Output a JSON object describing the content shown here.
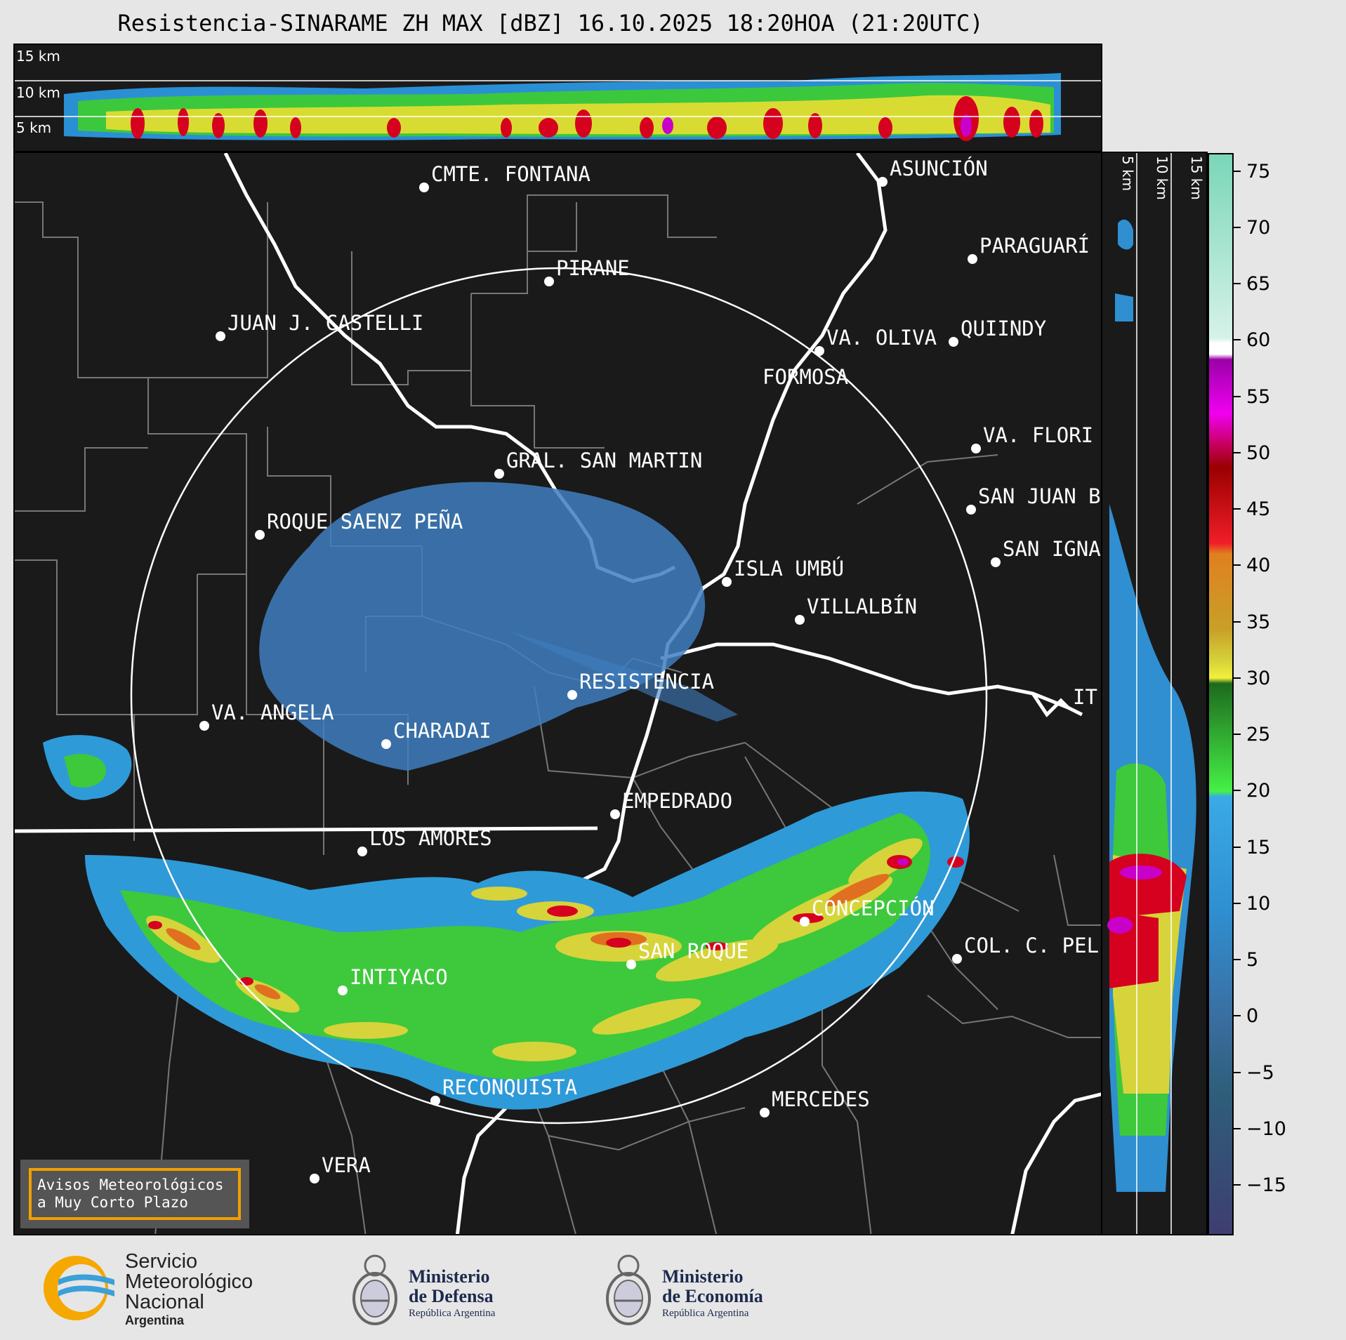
{
  "title": "Resistencia-SINARAME ZH MAX [dBZ] 16.10.2025 18:20HOA (21:20UTC)",
  "top_profile": {
    "labels": [
      "15 km",
      "10 km",
      "5 km"
    ]
  },
  "side_profile": {
    "labels": [
      "5 km",
      "10 km",
      "15 km"
    ]
  },
  "colorbar": {
    "ticks": [
      "75",
      "70",
      "65",
      "60",
      "55",
      "50",
      "45",
      "40",
      "35",
      "30",
      "25",
      "20",
      "15",
      "10",
      "5",
      "0",
      "−5",
      "−10",
      "−15"
    ]
  },
  "cities": [
    {
      "name": "CMTE. FONTANA"
    },
    {
      "name": "ASUNCIÓN"
    },
    {
      "name": "PARAGUARÍ"
    },
    {
      "name": "PIRANE"
    },
    {
      "name": "JUAN J. CASTELLI"
    },
    {
      "name": "VA. OLIVA"
    },
    {
      "name": "QUIINDY"
    },
    {
      "name": "FORMOSA"
    },
    {
      "name": "VA. FLORI"
    },
    {
      "name": "GRAL. SAN MARTIN"
    },
    {
      "name": "SAN JUAN B"
    },
    {
      "name": "ROQUE SAENZ PEÑA"
    },
    {
      "name": "SAN IGNA"
    },
    {
      "name": "ISLA UMBÚ"
    },
    {
      "name": "VILLALBÍN"
    },
    {
      "name": "RESISTENCIA"
    },
    {
      "name": "VA. ANGELA"
    },
    {
      "name": "CHARADAI"
    },
    {
      "name": "IT"
    },
    {
      "name": "EMPEDRADO"
    },
    {
      "name": "LOS AMORES"
    },
    {
      "name": "CONCEPCIÓN"
    },
    {
      "name": "SAN ROQUE"
    },
    {
      "name": "COL. C. PEL"
    },
    {
      "name": "INTIYACO"
    },
    {
      "name": "RECONQUISTA"
    },
    {
      "name": "MERCEDES"
    },
    {
      "name": "VERA"
    }
  ],
  "avisos": "Avisos Meteorológicos\na Muy Corto Plazo",
  "logos": {
    "smn": {
      "line1": "Servicio",
      "line2": "Meteorológico",
      "line3": "Nacional",
      "line4": "Argentina"
    },
    "defensa": {
      "line1": "Ministerio",
      "line2": "de Defensa",
      "line3": "República Argentina"
    },
    "economia": {
      "line1": "Ministerio",
      "line2": "de Economía",
      "line3": "República Argentina"
    }
  },
  "colors": {
    "background": "#1a1a1a",
    "page": "#e6e6e6",
    "avisos_border": "#f0a000",
    "smn_blue": "#3aa0d8",
    "smn_orange": "#f5a800"
  }
}
